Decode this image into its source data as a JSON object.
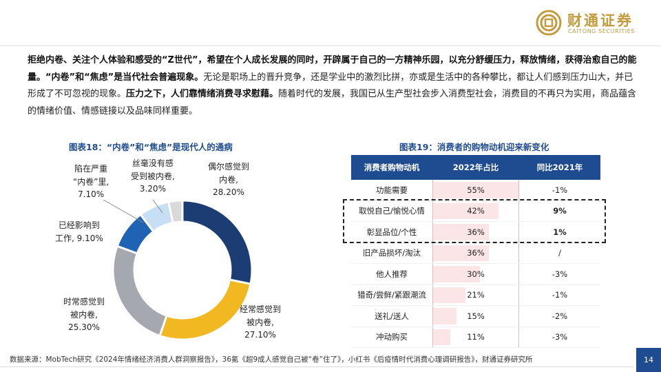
{
  "brand": {
    "name_cn": "财通证券",
    "name_en": "CAITONG SECURITIES",
    "color": "#c39a3c"
  },
  "intro": {
    "s1": "拒绝内卷、关注个人体验和感受的“Z世代”，希望在个人成长发展的同时，开辟属于自己的一方精神乐园，以充分舒缓压力，释放情绪，获得治愈自己的能量。",
    "s2": "“内卷”和“焦虑”是当代社会普遍现象。",
    "s3": "无论是职场上的晋升竞争，还是学业中的激烈比拼，亦或是生活中的各种攀比，都让人们感到压力山大，并已形成了不可忽视的现象。",
    "s4": "压力之下，人们靠情绪消费寻求慰藉。",
    "s5": "随着时代的发展，我国已从生产型社会步入消费型社会，消费目的不再只为实用，商品蕴含的情绪价值、情感链接以及品味同样重要。"
  },
  "fig18": {
    "title": "图表18：“内卷”和“焦虑”是现代人的通病",
    "labels": [
      [
        "偶尔感觉到",
        "内卷,",
        "28.20%"
      ],
      [
        "经常感觉到",
        "被内卷,",
        "27.10%"
      ],
      [
        "时常感觉到",
        "被内卷,",
        "25.30%"
      ],
      [
        "已经影响到",
        "工作, 9.10%"
      ],
      [
        "陷在严重",
        "“内卷”里,",
        "7.10%"
      ],
      [
        "丝毫没有感",
        "受到被内卷,",
        "3.20%"
      ]
    ]
  },
  "chart_data": {
    "type": "pie",
    "variant": "donut",
    "categories": [
      "偶尔感觉到内卷",
      "经常感觉到被内卷",
      "时常感觉到被内卷",
      "已经影响到工作",
      "陷在严重“内卷”里",
      "丝毫没有感受到被内卷"
    ],
    "values": [
      28.2,
      27.1,
      25.3,
      9.1,
      7.1,
      3.2
    ],
    "colors": [
      "#1c3d73",
      "#f2b822",
      "#a5a8af",
      "#1f63b5",
      "#c7dff5",
      "#d9d9d9"
    ]
  },
  "fig19": {
    "title": "图表19：消费者的购物动机迎来新变化",
    "headers": [
      "消费者购物动机",
      "2022年占比",
      "同比2021年"
    ],
    "rows": [
      {
        "motive": "功能需要",
        "share": "55%",
        "share_value": 55,
        "yoy": "-1%",
        "bold": false
      },
      {
        "motive": "取悦自己/愉悦心情",
        "share": "42%",
        "share_value": 42,
        "yoy": "9%",
        "bold": true
      },
      {
        "motive": "彰显品位/个性",
        "share": "36%",
        "share_value": 36,
        "yoy": "1%",
        "bold": true
      },
      {
        "motive": "旧产品损坏/淘汰",
        "share": "36%",
        "share_value": 36,
        "yoy": "/",
        "bold": false
      },
      {
        "motive": "他人推荐",
        "share": "30%",
        "share_value": 30,
        "yoy": "-3%",
        "bold": false
      },
      {
        "motive": "猎奇/尝鲜/紧跟潮流",
        "share": "21%",
        "share_value": 21,
        "yoy": "-1%",
        "bold": false
      },
      {
        "motive": "送礼/送人",
        "share": "15%",
        "share_value": 15,
        "yoy": "-2%",
        "bold": false
      },
      {
        "motive": "冲动购买",
        "share": "11%",
        "share_value": 11,
        "yoy": "-3%",
        "bold": false
      }
    ]
  },
  "source": "数据来源：MobTech研究《2024年情绪经济消费人群洞察报告》，36氪《超9成人感觉自己被“卷”住了》，小红书《后疫情时代消费心理调研报告》，财通证券研究所",
  "page_number": "14"
}
